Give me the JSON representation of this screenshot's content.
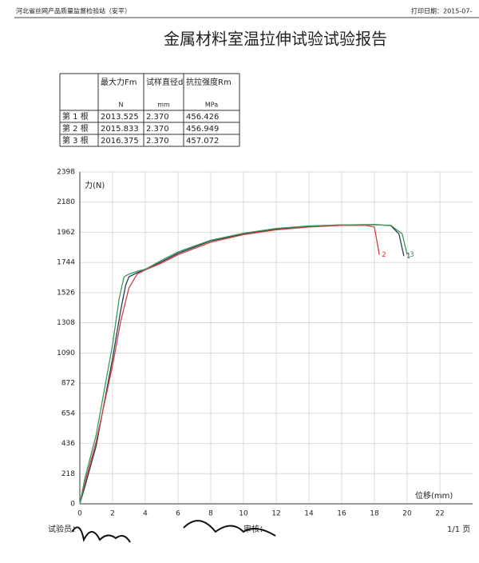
{
  "header": {
    "organization": "河北省丝网产品质量监督检验站（安平）",
    "print_date": "打印日期：2015-07-"
  },
  "title": "金属材料室温拉伸试验试验报告",
  "table": {
    "header": [
      "",
      "最大力Fm",
      "试样直径d",
      "抗拉强度Rm"
    ],
    "units": [
      "",
      "N",
      "mm",
      "MPa"
    ],
    "rows": [
      [
        "第 1 根",
        "2013.525",
        "2.370",
        "456.426"
      ],
      [
        "第 2 根",
        "2015.833",
        "2.370",
        "456.949"
      ],
      [
        "第 3 根",
        "2016.375",
        "2.370",
        "457.072"
      ]
    ]
  },
  "chart_data": {
    "type": "line",
    "y_label": "力(N)",
    "x_label": "位移(mm)",
    "xlim": [
      0,
      24
    ],
    "ylim": [
      0,
      2398
    ],
    "xticks": [
      0,
      2,
      4,
      6,
      8,
      10,
      12,
      14,
      16,
      18,
      20,
      22
    ],
    "yticks": [
      0,
      218,
      436,
      654,
      872,
      1090,
      1308,
      1526,
      1744,
      1962,
      2180,
      2398
    ],
    "grid": true,
    "series": [
      {
        "name": "1",
        "color": "#2b3a55",
        "x": [
          0,
          0.3,
          1,
          2,
          2.5,
          2.8,
          3,
          3.5,
          4,
          5,
          6,
          8,
          10,
          12,
          14,
          16,
          18,
          19,
          19.5,
          19.8
        ],
        "values": [
          0,
          120,
          420,
          1050,
          1400,
          1580,
          1640,
          1670,
          1690,
          1750,
          1810,
          1900,
          1950,
          1985,
          2005,
          2015,
          2018,
          2010,
          1950,
          1790
        ]
      },
      {
        "name": "2",
        "color": "#d04040",
        "x": [
          0,
          0.3,
          1,
          2,
          2.5,
          3,
          3.5,
          4,
          5,
          6,
          8,
          10,
          12,
          14,
          16,
          17.5,
          18,
          18.3
        ],
        "values": [
          0,
          150,
          450,
          1000,
          1320,
          1560,
          1660,
          1690,
          1740,
          1800,
          1890,
          1945,
          1980,
          2000,
          2012,
          2012,
          2000,
          1800
        ]
      },
      {
        "name": "3",
        "color": "#3a9a5a",
        "x": [
          0,
          0.3,
          1,
          2,
          2.4,
          2.7,
          3,
          3.5,
          4,
          5,
          6,
          8,
          10,
          12,
          14,
          16,
          18,
          19,
          19.7,
          20
        ],
        "values": [
          0,
          180,
          500,
          1150,
          1480,
          1640,
          1660,
          1680,
          1695,
          1760,
          1820,
          1905,
          1955,
          1990,
          2008,
          2016,
          2016,
          2012,
          1950,
          1800
        ]
      }
    ]
  },
  "footer": {
    "tester": "试验员：",
    "reviewer": "审核：",
    "page": "1/1 页"
  }
}
